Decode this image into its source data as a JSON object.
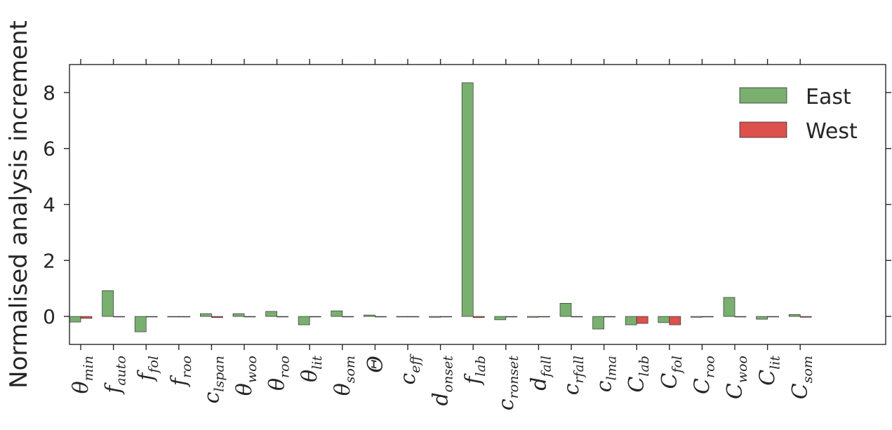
{
  "chart_data": {
    "type": "bar",
    "ylabel": "Normalised analysis increment",
    "xlabel": "",
    "ylim": [
      -1,
      9
    ],
    "yticks": [
      0,
      2,
      4,
      6,
      8
    ],
    "grid": false,
    "legend_position": "top-right",
    "categories": [
      {
        "base": "θ",
        "sub": "min"
      },
      {
        "base": "f",
        "sub": "auto"
      },
      {
        "base": "f",
        "sub": "fol"
      },
      {
        "base": "f",
        "sub": "roo"
      },
      {
        "base": "c",
        "sub": "lspan"
      },
      {
        "base": "θ",
        "sub": "woo"
      },
      {
        "base": "θ",
        "sub": "roo"
      },
      {
        "base": "θ",
        "sub": "lit"
      },
      {
        "base": "θ",
        "sub": "som"
      },
      {
        "base": "Θ",
        "sub": ""
      },
      {
        "base": "c",
        "sub": "eff"
      },
      {
        "base": "d",
        "sub": "onset"
      },
      {
        "base": "f",
        "sub": "lab"
      },
      {
        "base": "c",
        "sub": "ronset"
      },
      {
        "base": "d",
        "sub": "fall"
      },
      {
        "base": "c",
        "sub": "rfall"
      },
      {
        "base": "c",
        "sub": "lma"
      },
      {
        "base": "C",
        "sub": "lab"
      },
      {
        "base": "C",
        "sub": "fol"
      },
      {
        "base": "C",
        "sub": "roo"
      },
      {
        "base": "C",
        "sub": "woo"
      },
      {
        "base": "C",
        "sub": "lit"
      },
      {
        "base": "C",
        "sub": "som"
      }
    ],
    "series": [
      {
        "name": "East",
        "color": "#79b070",
        "values": [
          -0.2,
          0.92,
          -0.55,
          -0.01,
          0.1,
          0.1,
          0.18,
          -0.3,
          0.2,
          0.05,
          -0.01,
          -0.03,
          8.35,
          -0.12,
          -0.03,
          0.47,
          -0.45,
          -0.3,
          -0.22,
          -0.03,
          0.68,
          -0.1,
          0.07
        ]
      },
      {
        "name": "West",
        "color": "#dc514c",
        "values": [
          -0.07,
          -0.01,
          -0.01,
          -0.01,
          -0.04,
          -0.01,
          -0.01,
          -0.01,
          -0.01,
          -0.01,
          -0.01,
          -0.01,
          -0.04,
          -0.01,
          -0.01,
          -0.01,
          -0.01,
          -0.25,
          -0.3,
          -0.01,
          -0.01,
          -0.01,
          -0.03
        ]
      }
    ]
  }
}
